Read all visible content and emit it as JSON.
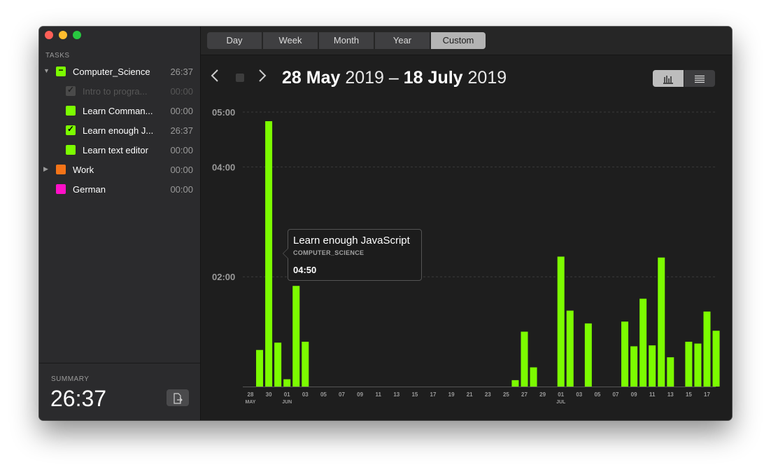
{
  "sidebar": {
    "section_title": "TASKS",
    "tasks": [
      {
        "label": "Computer_Science",
        "time": "26:37",
        "color": "#7cfc00",
        "mark": "−",
        "arrow": "▼",
        "indent": 0
      },
      {
        "label": "Intro to progra...",
        "time": "00:00",
        "color": "#4a4a4a",
        "mark": "✓",
        "indent": 1,
        "dim": true
      },
      {
        "label": "Learn Comman...",
        "time": "00:00",
        "color": "#7cfc00",
        "mark": "",
        "indent": 1
      },
      {
        "label": "Learn enough J...",
        "time": "26:37",
        "color": "#7cfc00",
        "mark": "✓",
        "indent": 1
      },
      {
        "label": "Learn text editor",
        "time": "00:00",
        "color": "#7cfc00",
        "mark": "",
        "indent": 1
      },
      {
        "label": "Work",
        "time": "00:00",
        "color": "#f57418",
        "mark": "",
        "arrow": "▶",
        "indent": 0
      },
      {
        "label": "German",
        "time": "00:00",
        "color": "#ff10c8",
        "mark": "",
        "indent": 0
      }
    ]
  },
  "summary": {
    "label": "SUMMARY",
    "value": "26:37",
    "export_icon": "export-icon"
  },
  "tabs": [
    {
      "label": "Day",
      "active": false
    },
    {
      "label": "Week",
      "active": false
    },
    {
      "label": "Month",
      "active": false
    },
    {
      "label": "Year",
      "active": false
    },
    {
      "label": "Custom",
      "active": true
    }
  ],
  "date_range": {
    "start_day": "28 May",
    "start_year": "2019",
    "separator": "–",
    "end_day": "18 July",
    "end_year": "2019"
  },
  "nav": {
    "prev_icon": "chevron-left-icon",
    "stop_icon": "stop-icon",
    "next_icon": "chevron-right-icon"
  },
  "view_toggle": {
    "chart_icon": "bar-chart-icon",
    "list_icon": "list-icon",
    "active": "chart"
  },
  "tooltip": {
    "title": "Learn enough JavaScript",
    "subtitle": "COMPUTER_SCIENCE",
    "value": "04:50"
  },
  "colors": {
    "accent": "#7cfc00",
    "background": "#1e1e1e",
    "sidebar": "#2b2b2d"
  },
  "chart_data": {
    "type": "bar",
    "series_color": "#7cfc00",
    "ylim_minutes": [
      0,
      300
    ],
    "y_ticks": [
      {
        "value": 300,
        "label": "05:00"
      },
      {
        "value": 240,
        "label": "04:00"
      },
      {
        "value": 120,
        "label": "02:00"
      }
    ],
    "x_ticks": [
      {
        "date": "2019-05-28",
        "label": "28",
        "sub": "MAY"
      },
      {
        "date": "2019-05-30",
        "label": "30"
      },
      {
        "date": "2019-06-01",
        "label": "01",
        "sub": "JUN"
      },
      {
        "date": "2019-06-03",
        "label": "03"
      },
      {
        "date": "2019-06-05",
        "label": "05"
      },
      {
        "date": "2019-06-07",
        "label": "07"
      },
      {
        "date": "2019-06-09",
        "label": "09"
      },
      {
        "date": "2019-06-11",
        "label": "11"
      },
      {
        "date": "2019-06-13",
        "label": "13"
      },
      {
        "date": "2019-06-15",
        "label": "15"
      },
      {
        "date": "2019-06-17",
        "label": "17"
      },
      {
        "date": "2019-06-19",
        "label": "19"
      },
      {
        "date": "2019-06-21",
        "label": "21"
      },
      {
        "date": "2019-06-23",
        "label": "23"
      },
      {
        "date": "2019-06-25",
        "label": "25"
      },
      {
        "date": "2019-06-27",
        "label": "27"
      },
      {
        "date": "2019-06-29",
        "label": "29"
      },
      {
        "date": "2019-07-01",
        "label": "01",
        "sub": "JUL"
      },
      {
        "date": "2019-07-03",
        "label": "03"
      },
      {
        "date": "2019-07-05",
        "label": "05"
      },
      {
        "date": "2019-07-07",
        "label": "07"
      },
      {
        "date": "2019-07-09",
        "label": "09"
      },
      {
        "date": "2019-07-11",
        "label": "11"
      },
      {
        "date": "2019-07-13",
        "label": "13"
      },
      {
        "date": "2019-07-15",
        "label": "15"
      },
      {
        "date": "2019-07-17",
        "label": "17"
      }
    ],
    "bars": [
      {
        "date": "2019-05-29",
        "minutes": 40
      },
      {
        "date": "2019-05-30",
        "minutes": 290
      },
      {
        "date": "2019-05-31",
        "minutes": 48
      },
      {
        "date": "2019-06-01",
        "minutes": 8
      },
      {
        "date": "2019-06-02",
        "minutes": 110
      },
      {
        "date": "2019-06-03",
        "minutes": 49
      },
      {
        "date": "2019-06-26",
        "minutes": 7
      },
      {
        "date": "2019-06-27",
        "minutes": 60
      },
      {
        "date": "2019-06-28",
        "minutes": 21
      },
      {
        "date": "2019-07-01",
        "minutes": 142
      },
      {
        "date": "2019-07-02",
        "minutes": 83
      },
      {
        "date": "2019-07-04",
        "minutes": 69
      },
      {
        "date": "2019-07-08",
        "minutes": 71
      },
      {
        "date": "2019-07-09",
        "minutes": 44
      },
      {
        "date": "2019-07-10",
        "minutes": 96
      },
      {
        "date": "2019-07-11",
        "minutes": 45
      },
      {
        "date": "2019-07-12",
        "minutes": 141
      },
      {
        "date": "2019-07-13",
        "minutes": 32
      },
      {
        "date": "2019-07-15",
        "minutes": 49
      },
      {
        "date": "2019-07-16",
        "minutes": 47
      },
      {
        "date": "2019-07-17",
        "minutes": 82
      },
      {
        "date": "2019-07-18",
        "minutes": 61
      }
    ]
  }
}
